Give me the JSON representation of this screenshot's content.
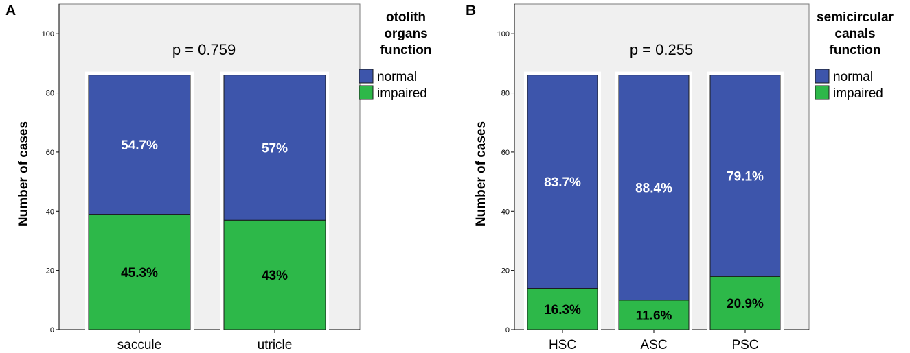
{
  "colors": {
    "normal": "#3d55ab",
    "impaired": "#2db849",
    "plot_bg": "#f0f0f0"
  },
  "chart_data": [
    {
      "type": "bar",
      "stacked": true,
      "panel_label": "A",
      "title": "",
      "annotation": "p = 0.759",
      "xlabel": "",
      "ylabel": "Number of cases",
      "ylim": [
        0,
        110
      ],
      "yticks": [
        0,
        20,
        40,
        60,
        80,
        100
      ],
      "categories": [
        "saccule",
        "utricle"
      ],
      "legend_title_lines": [
        "otolith",
        "organs",
        "function"
      ],
      "series": [
        {
          "name": "impaired",
          "values": [
            39,
            37
          ],
          "labels": [
            "45.3%",
            "43%"
          ]
        },
        {
          "name": "normal",
          "values": [
            47,
            49
          ],
          "labels": [
            "54.7%",
            "57%"
          ]
        }
      ]
    },
    {
      "type": "bar",
      "stacked": true,
      "panel_label": "B",
      "title": "",
      "annotation": "p = 0.255",
      "xlabel": "",
      "ylabel": "Number of cases",
      "ylim": [
        0,
        110
      ],
      "yticks": [
        0,
        20,
        40,
        60,
        80,
        100
      ],
      "categories": [
        "HSC",
        "ASC",
        "PSC"
      ],
      "legend_title_lines": [
        "semicircular",
        "canals",
        "function"
      ],
      "series": [
        {
          "name": "impaired",
          "values": [
            14,
            10,
            18
          ],
          "labels": [
            "16.3%",
            "11.6%",
            "20.9%"
          ]
        },
        {
          "name": "normal",
          "values": [
            72,
            76,
            68
          ],
          "labels": [
            "83.7%",
            "88.4%",
            "79.1%"
          ]
        }
      ]
    }
  ]
}
